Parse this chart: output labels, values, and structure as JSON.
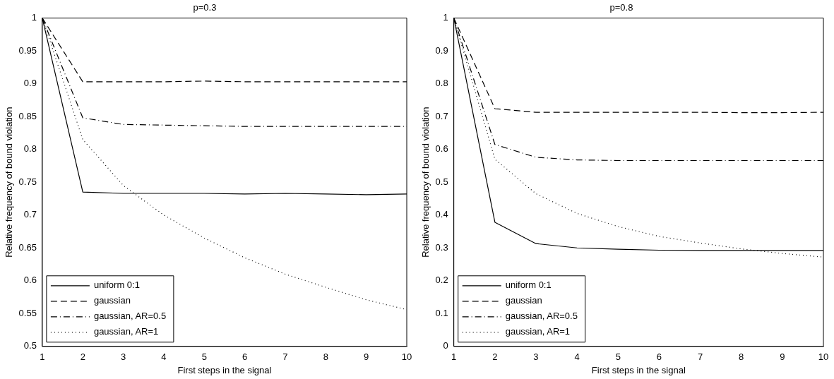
{
  "chart_data": [
    {
      "type": "line",
      "title": "p=0.3",
      "xlabel": "First steps in the signal",
      "ylabel": "Relative frequency of bound violation",
      "x": [
        1,
        2,
        3,
        4,
        5,
        6,
        7,
        8,
        9,
        10
      ],
      "xlim": [
        1,
        10
      ],
      "xticks": [
        1,
        2,
        3,
        4,
        5,
        6,
        7,
        8,
        9,
        10
      ],
      "ylim": [
        0.5,
        1
      ],
      "yticks": [
        0.5,
        0.55,
        0.6,
        0.65,
        0.7,
        0.75,
        0.8,
        0.85,
        0.9,
        0.95,
        1
      ],
      "legend": "bottom left",
      "series": [
        {
          "name": "uniform 0:1",
          "color": "#000000",
          "line_style": "solid",
          "values": [
            1,
            0.735,
            0.733,
            0.733,
            0.733,
            0.732,
            0.733,
            0.732,
            0.731,
            0.732
          ]
        },
        {
          "name": "gaussian",
          "color": "#000000",
          "line_style": "dashed",
          "values": [
            1,
            0.903,
            0.903,
            0.903,
            0.904,
            0.903,
            0.903,
            0.903,
            0.903,
            0.903
          ]
        },
        {
          "name": "gaussian, AR=0.5",
          "color": "#000000",
          "line_style": "dashdot",
          "values": [
            1,
            0.848,
            0.838,
            0.837,
            0.836,
            0.835,
            0.835,
            0.835,
            0.835,
            0.835
          ]
        },
        {
          "name": "gaussian, AR=1",
          "color": "#000000",
          "line_style": "dotted",
          "values": [
            1,
            0.815,
            0.745,
            0.7,
            0.665,
            0.635,
            0.61,
            0.59,
            0.571,
            0.556
          ]
        }
      ]
    },
    {
      "type": "line",
      "title": "p=0.8",
      "xlabel": "First steps in the signal",
      "ylabel": "Relative frequency of bound violation",
      "x": [
        1,
        2,
        3,
        4,
        5,
        6,
        7,
        8,
        9,
        10
      ],
      "xlim": [
        1,
        10
      ],
      "xticks": [
        1,
        2,
        3,
        4,
        5,
        6,
        7,
        8,
        9,
        10
      ],
      "ylim": [
        0,
        1
      ],
      "yticks": [
        0,
        0.1,
        0.2,
        0.3,
        0.4,
        0.5,
        0.6,
        0.7,
        0.8,
        0.9,
        1
      ],
      "legend": "bottom left",
      "series": [
        {
          "name": "uniform 0:1",
          "color": "#000000",
          "line_style": "solid",
          "values": [
            1,
            0.378,
            0.313,
            0.3,
            0.296,
            0.293,
            0.292,
            0.292,
            0.292,
            0.292
          ]
        },
        {
          "name": "gaussian",
          "color": "#000000",
          "line_style": "dashed",
          "values": [
            1,
            0.724,
            0.713,
            0.713,
            0.713,
            0.713,
            0.713,
            0.712,
            0.712,
            0.713
          ]
        },
        {
          "name": "gaussian, AR=0.5",
          "color": "#000000",
          "line_style": "dashdot",
          "values": [
            1,
            0.615,
            0.576,
            0.568,
            0.566,
            0.566,
            0.566,
            0.566,
            0.566,
            0.566
          ]
        },
        {
          "name": "gaussian, AR=1",
          "color": "#000000",
          "line_style": "dotted",
          "values": [
            1,
            0.57,
            0.465,
            0.405,
            0.365,
            0.335,
            0.315,
            0.297,
            0.283,
            0.272
          ]
        }
      ]
    }
  ]
}
